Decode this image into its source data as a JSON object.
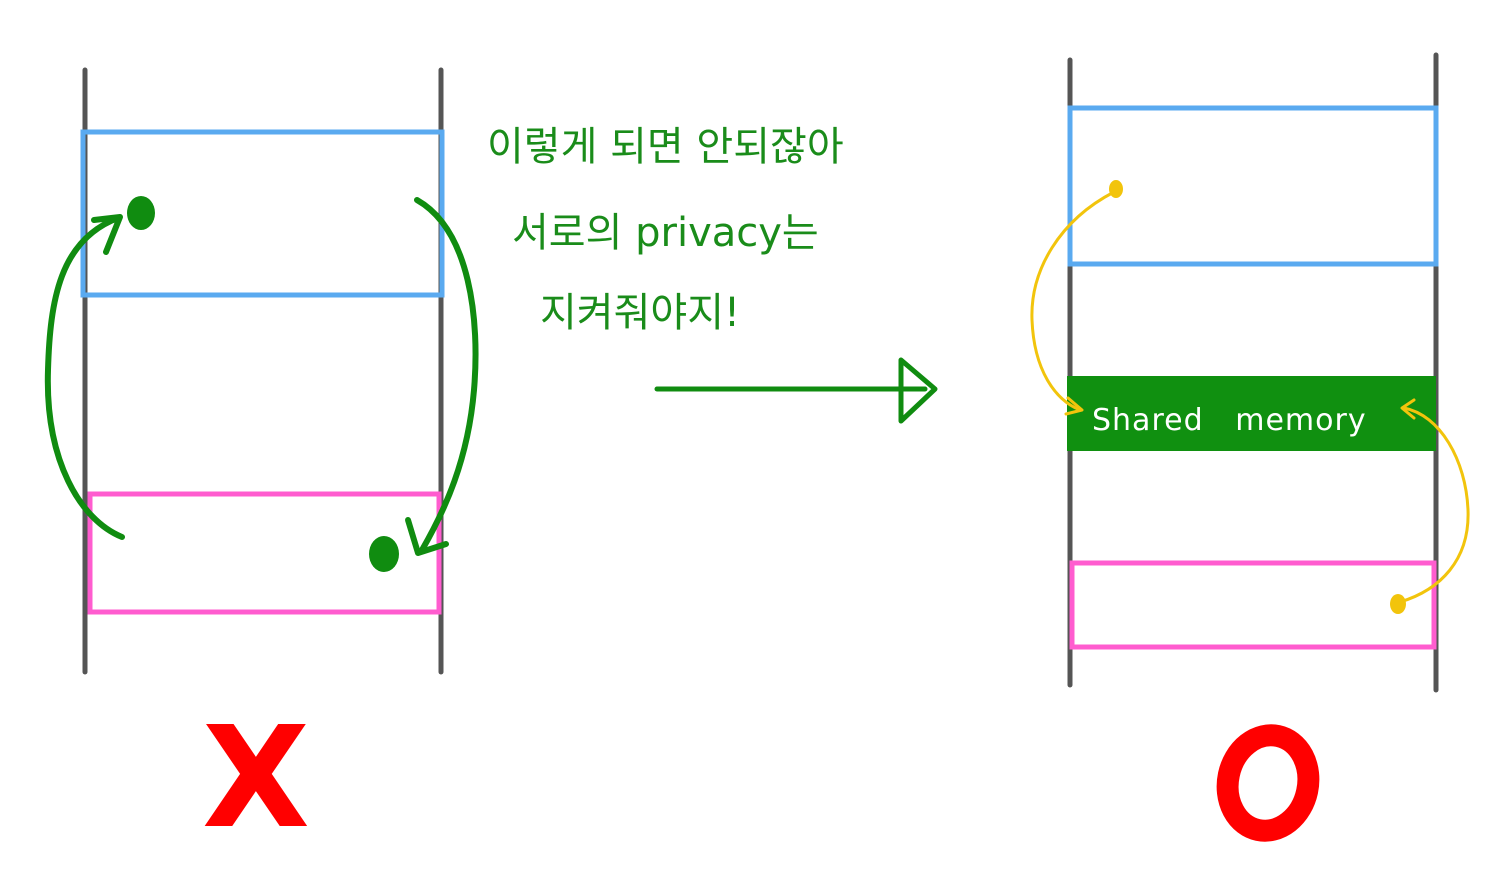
{
  "note": {
    "line1": "이렇게 되면 안되잖아",
    "line2": "서로의 privacy는",
    "line3": "지켜줘야지!"
  },
  "shared_memory": {
    "label": "Shared   memory"
  },
  "marks": {
    "wrong": "X",
    "right": "O"
  },
  "colors": {
    "stack_line": "#555555",
    "process_a": "#5aaaf0",
    "process_b": "#ff5ccf",
    "arrow_green": "#108c10",
    "shared_fill": "#109010",
    "yellow": "#f2c40c",
    "mark_red": "#ff0000"
  }
}
